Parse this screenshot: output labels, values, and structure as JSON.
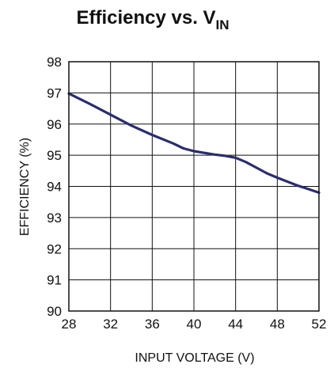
{
  "chart_data": {
    "type": "line",
    "title": "Efficiency vs. V",
    "title_subscript": "IN",
    "xlabel": "INPUT VOLTAGE (V)",
    "ylabel": "EFFICIENCY (%)",
    "xlim": [
      28,
      52
    ],
    "ylim": [
      90,
      98
    ],
    "x_ticks": [
      "28",
      "32",
      "36",
      "40",
      "44",
      "48",
      "52"
    ],
    "y_ticks": [
      "90",
      "91",
      "92",
      "93",
      "94",
      "95",
      "96",
      "97",
      "98"
    ],
    "grid": true,
    "series": [
      {
        "color": "#2b2d6e",
        "x": [
          28,
          30,
          32,
          34,
          36,
          38,
          39,
          40,
          42,
          43,
          44,
          45,
          46,
          47,
          48,
          50,
          52
        ],
        "y": [
          96.98,
          96.65,
          96.3,
          95.95,
          95.65,
          95.38,
          95.22,
          95.13,
          95.02,
          94.98,
          94.92,
          94.78,
          94.6,
          94.42,
          94.28,
          94.02,
          93.8
        ]
      }
    ]
  }
}
